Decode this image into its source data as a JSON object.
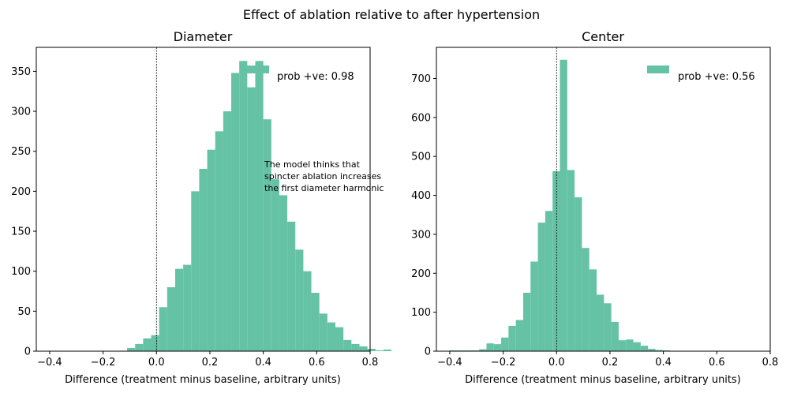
{
  "figure": {
    "suptitle": "Effect of ablation relative to after hypertension"
  },
  "colors": {
    "bar": "#66c2a5",
    "axis": "#000000"
  },
  "chart_data": [
    {
      "type": "bar",
      "title": "Diameter",
      "xlabel": "Difference (treatment minus baseline, arbitrary units)",
      "ylabel": "",
      "xlim": [
        -0.45,
        0.8
      ],
      "ylim": [
        0,
        380
      ],
      "x_ticks": [
        -0.4,
        -0.2,
        0.0,
        0.2,
        0.4,
        0.6,
        0.8
      ],
      "x_tick_labels": [
        "−0.4",
        "−0.2",
        "0.0",
        "0.2",
        "0.4",
        "0.6",
        "0.8"
      ],
      "y_ticks": [
        0,
        50,
        100,
        150,
        200,
        250,
        300,
        350
      ],
      "y_tick_labels": [
        "0",
        "50",
        "100",
        "150",
        "200",
        "250",
        "300",
        "350"
      ],
      "bin_start": -0.11,
      "bin_width": 0.03,
      "values": [
        4,
        9,
        16,
        20,
        55,
        80,
        103,
        108,
        200,
        228,
        252,
        275,
        300,
        348,
        363,
        330,
        363,
        290,
        215,
        195,
        162,
        127,
        100,
        73,
        47,
        36,
        30,
        14,
        9,
        6,
        3,
        1,
        2
      ],
      "vline_x": 0.0,
      "legend": {
        "label": "prob +ve: 0.98",
        "position": "upper right"
      },
      "annotation": [
        "The model thinks that",
        "spincter ablation increases",
        "the first diameter harmonic"
      ]
    },
    {
      "type": "bar",
      "title": "Center",
      "xlabel": "Difference (treatment minus baseline, arbitrary units)",
      "ylabel": "",
      "xlim": [
        -0.45,
        0.8
      ],
      "ylim": [
        0,
        780
      ],
      "x_ticks": [
        -0.4,
        -0.2,
        0.0,
        0.2,
        0.4,
        0.6,
        0.8
      ],
      "x_tick_labels": [
        "−0.4",
        "−0.2",
        "0.0",
        "0.2",
        "0.4",
        "0.6",
        "0.8"
      ],
      "y_ticks": [
        0,
        100,
        200,
        300,
        400,
        500,
        600,
        700
      ],
      "y_tick_labels": [
        "0",
        "100",
        "200",
        "300",
        "400",
        "500",
        "600",
        "700"
      ],
      "bin_start": -0.4,
      "bin_width": 0.0275,
      "values": [
        2,
        2,
        2,
        2,
        5,
        20,
        18,
        35,
        65,
        80,
        150,
        230,
        330,
        360,
        462,
        748,
        465,
        395,
        265,
        210,
        145,
        123,
        75,
        28,
        30,
        23,
        14,
        6,
        3,
        2
      ],
      "vline_x": 0.0,
      "legend": {
        "label": "prob +ve: 0.56",
        "position": "upper right"
      }
    }
  ]
}
